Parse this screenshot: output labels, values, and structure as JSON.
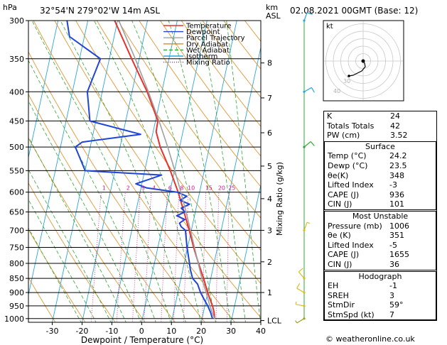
{
  "header": {
    "unit_hpa": "hPa",
    "location": "32°54'N  279°02'W  14m  ASL",
    "unit_km": "km",
    "unit_asl": "ASL",
    "datetime": "02.08.2021  00GMT  (Base: 12)"
  },
  "chart_data": {
    "type": "line",
    "title": "32°54'N  279°02'W  14m  ASL",
    "xlabel": "Dewpoint / Temperature (°C)",
    "ylabel": "hPa",
    "y2label": "Mixing Ratio (g/kg)",
    "x_ticks": [
      -30,
      -20,
      -10,
      0,
      10,
      20,
      30,
      40
    ],
    "xlim": [
      -38,
      40
    ],
    "y_scale": "log-pressure",
    "pressure_ticks": [
      300,
      350,
      400,
      450,
      500,
      550,
      600,
      650,
      700,
      750,
      800,
      850,
      900,
      950,
      1000
    ],
    "ylim": [
      1015,
      300
    ],
    "km_ticks": [
      {
        "label": "8",
        "p": 356
      },
      {
        "label": "7",
        "p": 410
      },
      {
        "label": "6",
        "p": 472
      },
      {
        "label": "5",
        "p": 540
      },
      {
        "label": "4",
        "p": 616
      },
      {
        "label": "3",
        "p": 700
      },
      {
        "label": "2",
        "p": 795
      },
      {
        "label": "1",
        "p": 900
      },
      {
        "label": "LCL",
        "p": 1008
      }
    ],
    "mixing_ratio_labels": [
      "1",
      "2",
      "3",
      "4",
      "6",
      "8",
      "10",
      "15",
      "20",
      "25"
    ],
    "legend": [
      "Temperature",
      "Dewpoint",
      "Parcel Trajectory",
      "Dry Adiabat",
      "Wet Adiabat",
      "Isotherm",
      "Mixing Ratio"
    ],
    "colors": {
      "temperature": "#e8312b",
      "dewpoint": "#1f45d8",
      "parcel": "#a0a0a0",
      "dry_adiabat": "#e08a1c",
      "wet_adiabat": "#30a830",
      "isotherm": "#2aa6d8",
      "mixing_ratio": "#d0198c"
    },
    "series": [
      {
        "name": "Temperature",
        "points": [
          [
            1000,
            24.2
          ],
          [
            975,
            23.6
          ],
          [
            950,
            22.6
          ],
          [
            925,
            21.3
          ],
          [
            900,
            20.0
          ],
          [
            850,
            17.6
          ],
          [
            800,
            14.8
          ],
          [
            750,
            12.0
          ],
          [
            700,
            9.3
          ],
          [
            650,
            6.2
          ],
          [
            600,
            2.8
          ],
          [
            550,
            -1.4
          ],
          [
            500,
            -6.5
          ],
          [
            470,
            -9.0
          ],
          [
            450,
            -9.2
          ],
          [
            400,
            -14.9
          ],
          [
            350,
            -22.5
          ],
          [
            300,
            -31.0
          ]
        ]
      },
      {
        "name": "Dewpoint",
        "points": [
          [
            1000,
            23.5
          ],
          [
            975,
            22.4
          ],
          [
            950,
            21.0
          ],
          [
            925,
            19.3
          ],
          [
            900,
            17.6
          ],
          [
            870,
            16.0
          ],
          [
            850,
            13.9
          ],
          [
            820,
            12.5
          ],
          [
            800,
            11.8
          ],
          [
            750,
            9.8
          ],
          [
            700,
            8.0
          ],
          [
            690,
            6.3
          ],
          [
            680,
            5.5
          ],
          [
            670,
            7.0
          ],
          [
            660,
            4.0
          ],
          [
            650,
            6.5
          ],
          [
            640,
            5.0
          ],
          [
            630,
            7.5
          ],
          [
            620,
            4.0
          ],
          [
            610,
            6.0
          ],
          [
            600,
            2.5
          ],
          [
            590,
            -8.0
          ],
          [
            580,
            -12.0
          ],
          [
            570,
            -8.0
          ],
          [
            560,
            -4.0
          ],
          [
            550,
            -30.0
          ],
          [
            500,
            -35.0
          ],
          [
            490,
            -33.0
          ],
          [
            475,
            -14.0
          ],
          [
            450,
            -32.0
          ],
          [
            400,
            -35.0
          ],
          [
            350,
            -33.0
          ],
          [
            320,
            -45.0
          ],
          [
            300,
            -47.0
          ]
        ]
      },
      {
        "name": "Parcel Trajectory",
        "points": [
          [
            1000,
            24.2
          ],
          [
            950,
            21.7
          ],
          [
            900,
            19.5
          ],
          [
            850,
            17.0
          ],
          [
            800,
            14.7
          ],
          [
            750,
            12.3
          ],
          [
            700,
            9.7
          ],
          [
            650,
            6.9
          ],
          [
            600,
            3.7
          ],
          [
            550,
            0.1
          ],
          [
            500,
            -4.0
          ],
          [
            450,
            -8.8
          ],
          [
            400,
            -14.5
          ],
          [
            350,
            -21.3
          ],
          [
            300,
            -29.6
          ]
        ]
      }
    ],
    "wind_barbs": [
      {
        "p": 300,
        "dir": 200,
        "kt": 10
      },
      {
        "p": 400,
        "dir": 240,
        "kt": 15
      },
      {
        "p": 500,
        "dir": 230,
        "kt": 10
      },
      {
        "p": 700,
        "dir": 200,
        "kt": 5
      },
      {
        "p": 850,
        "dir": 140,
        "kt": 10
      },
      {
        "p": 900,
        "dir": 120,
        "kt": 10
      },
      {
        "p": 950,
        "dir": 100,
        "kt": 5
      },
      {
        "p": 1000,
        "dir": 59,
        "kt": 7
      }
    ],
    "hodograph": {
      "label": "kt",
      "ring_labels": [
        "40",
        "30"
      ]
    }
  },
  "indices": {
    "top": [
      {
        "label": "K",
        "value": "24"
      },
      {
        "label": "Totals Totals",
        "value": "42"
      },
      {
        "label": "PW (cm)",
        "value": "3.52"
      }
    ],
    "surface": {
      "title": "Surface",
      "rows": [
        {
          "label": "Temp (°C)",
          "value": "24.2"
        },
        {
          "label": "Dewp (°C)",
          "value": "23.5"
        },
        {
          "label": "θe(K)",
          "value": "348"
        },
        {
          "label": "Lifted Index",
          "value": "-3"
        },
        {
          "label": "CAPE (J)",
          "value": "936"
        },
        {
          "label": "CIN (J)",
          "value": "101"
        }
      ]
    },
    "most_unstable": {
      "title": "Most Unstable",
      "rows": [
        {
          "label": "Pressure (mb)",
          "value": "1006"
        },
        {
          "label": "θe (K)",
          "value": "351"
        },
        {
          "label": "Lifted Index",
          "value": "-5"
        },
        {
          "label": "CAPE (J)",
          "value": "1655"
        },
        {
          "label": "CIN (J)",
          "value": "36"
        }
      ]
    },
    "hodograph": {
      "title": "Hodograph",
      "rows": [
        {
          "label": "EH",
          "value": "-1"
        },
        {
          "label": "SREH",
          "value": "3"
        },
        {
          "label": "StmDir",
          "value": "59°"
        },
        {
          "label": "StmSpd (kt)",
          "value": "7"
        }
      ]
    }
  },
  "footer": "© weatheronline.co.uk"
}
